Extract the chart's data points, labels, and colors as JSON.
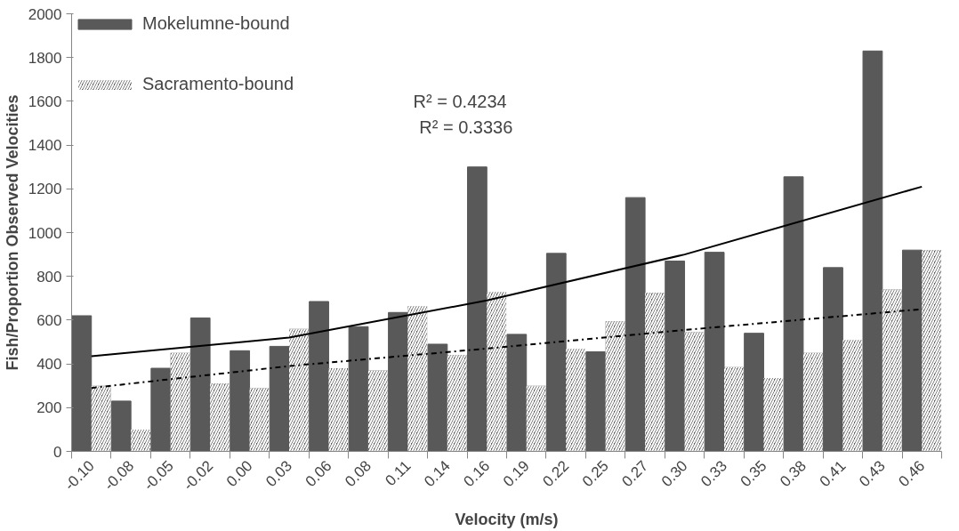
{
  "chart_data": {
    "type": "bar",
    "xlabel": "Velocity (m/s)",
    "ylabel": "Fish/Proportion Observed Velocities",
    "categories": [
      "-0.10",
      "-0.08",
      "-0.05",
      "-0.02",
      "0.00",
      "0.03",
      "0.06",
      "0.08",
      "0.11",
      "0.14",
      "0.16",
      "0.19",
      "0.22",
      "0.25",
      "0.27",
      "0.30",
      "0.33",
      "0.35",
      "0.38",
      "0.41",
      "0.43",
      "0.46"
    ],
    "series": [
      {
        "name": "Mokelumne-bound",
        "color": "#595959",
        "values": [
          620,
          230,
          380,
          610,
          460,
          480,
          685,
          570,
          635,
          490,
          1300,
          535,
          905,
          455,
          1160,
          870,
          910,
          540,
          1255,
          840,
          1830,
          920
        ]
      },
      {
        "name": "Sacramento-bound",
        "color": "#595959",
        "values": [
          300,
          100,
          450,
          310,
          290,
          560,
          380,
          370,
          665,
          440,
          730,
          300,
          470,
          595,
          725,
          545,
          385,
          335,
          450,
          510,
          740,
          920
        ]
      },
      {
        "type": "line",
        "line_style": "solid",
        "color": "#000000",
        "x": [
          "-0.10",
          "0.03",
          "0.16",
          "0.30",
          "0.46"
        ],
        "values": [
          435,
          520,
          690,
          900,
          1210
        ]
      },
      {
        "type": "line",
        "line_style": "dashdot",
        "color": "#000000",
        "x": [
          "-0.10",
          "0.03",
          "0.16",
          "0.30",
          "0.46"
        ],
        "values": [
          290,
          390,
          470,
          555,
          650
        ]
      }
    ],
    "annotations": [
      "R² = 0.4234",
      "R² = 0.3336"
    ],
    "ylim": [
      0,
      2000
    ],
    "yticks": [
      0,
      200,
      400,
      600,
      800,
      1000,
      1200,
      1400,
      1600,
      1800,
      2000
    ],
    "grid": false,
    "legend": "top left"
  }
}
